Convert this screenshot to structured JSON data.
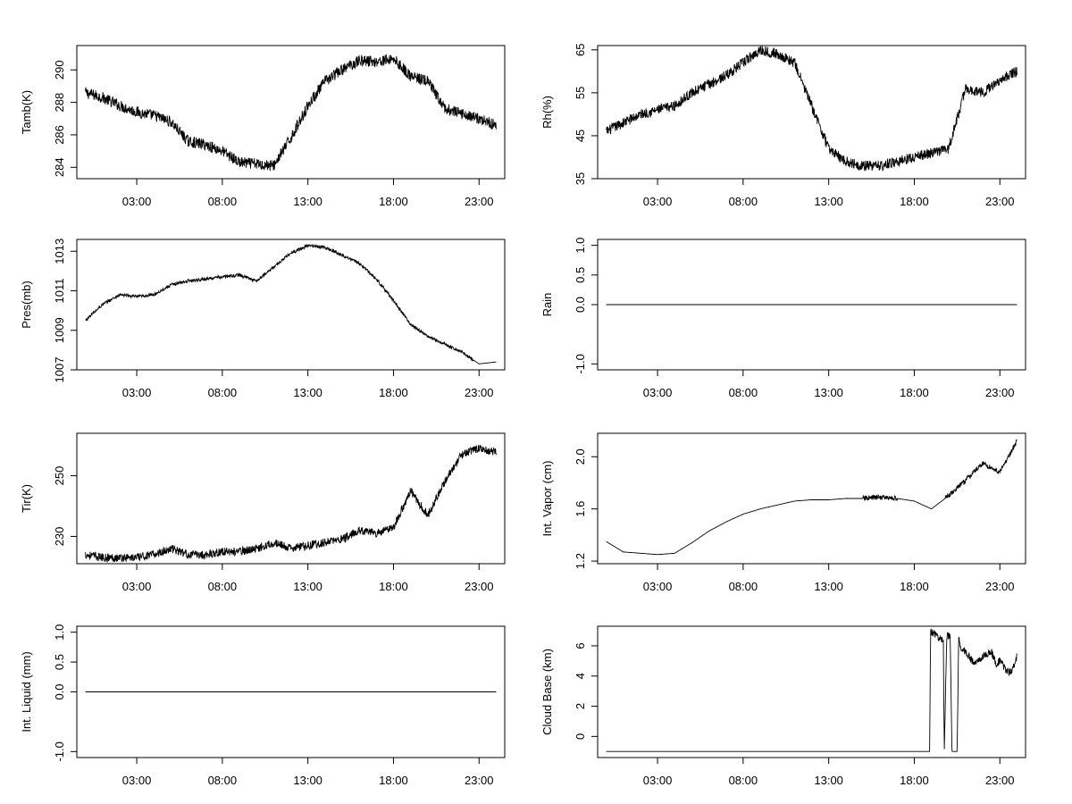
{
  "chart_data": [
    {
      "type": "line",
      "ylabel": "Tamb(K)",
      "x_ticks": [
        "03:00",
        "08:00",
        "13:00",
        "18:00",
        "23:00"
      ],
      "y_ticks": [
        "284",
        "286",
        "288",
        "290"
      ],
      "xlim": [
        -0.5,
        24.5
      ],
      "ylim": [
        283.3,
        291.5
      ],
      "x": [
        0,
        1,
        2,
        3,
        4,
        5,
        6,
        7,
        8,
        9,
        10,
        11,
        12,
        13,
        14,
        15,
        16,
        17,
        18,
        19,
        20,
        21,
        22,
        23,
        24
      ],
      "y": [
        288.6,
        288.3,
        287.8,
        287.4,
        287.2,
        286.8,
        285.6,
        285.4,
        285.0,
        284.3,
        284.2,
        284.1,
        285.8,
        287.8,
        289.3,
        290.0,
        290.6,
        290.5,
        290.7,
        289.6,
        289.3,
        287.6,
        287.3,
        287.0,
        286.6
      ],
      "noise": 0.35
    },
    {
      "type": "line",
      "ylabel": "Rh(%)",
      "x_ticks": [
        "03:00",
        "08:00",
        "13:00",
        "18:00",
        "23:00"
      ],
      "y_ticks": [
        "35",
        "45",
        "55",
        "65"
      ],
      "xlim": [
        -0.5,
        24.5
      ],
      "ylim": [
        35,
        66
      ],
      "x": [
        0,
        1,
        2,
        3,
        4,
        5,
        6,
        7,
        8,
        9,
        10,
        11,
        12,
        13,
        14,
        15,
        16,
        17,
        18,
        19,
        20,
        21,
        22,
        23,
        24
      ],
      "y": [
        46,
        48,
        50,
        51,
        52,
        55,
        57,
        59,
        62,
        65,
        64,
        62,
        52,
        42,
        39,
        38,
        38,
        39,
        40,
        41,
        42,
        56,
        55,
        58,
        60
      ],
      "noise": 1.2
    },
    {
      "type": "line",
      "ylabel": "Pres(mb)",
      "x_ticks": [
        "03:00",
        "08:00",
        "13:00",
        "18:00",
        "23:00"
      ],
      "y_ticks": [
        "1007",
        "1009",
        "1011",
        "1013"
      ],
      "xlim": [
        -0.5,
        24.5
      ],
      "ylim": [
        1007,
        1013.6
      ],
      "x": [
        0,
        1,
        2,
        3,
        4,
        5,
        6,
        7,
        8,
        9,
        10,
        11,
        12,
        13,
        14,
        15,
        16,
        17,
        18,
        19,
        20,
        21,
        22,
        23,
        24
      ],
      "y": [
        1009.5,
        1010.3,
        1010.8,
        1010.7,
        1010.8,
        1011.3,
        1011.5,
        1011.6,
        1011.7,
        1011.8,
        1011.5,
        1012.2,
        1012.9,
        1013.3,
        1013.2,
        1012.8,
        1012.4,
        1011.6,
        1010.5,
        1009.3,
        1008.7,
        1008.3,
        1007.9,
        1007.3,
        1007.4
      ],
      "noise": 0.08
    },
    {
      "type": "line",
      "ylabel": "Rain",
      "x_ticks": [
        "03:00",
        "08:00",
        "13:00",
        "18:00",
        "23:00"
      ],
      "y_ticks": [
        "-1.0",
        "0.0",
        "0.5",
        "1.0"
      ],
      "xlim": [
        -0.5,
        24.5
      ],
      "ylim": [
        -1.1,
        1.1
      ],
      "x": [
        0,
        24
      ],
      "y": [
        0,
        0
      ],
      "noise": 0
    },
    {
      "type": "line",
      "ylabel": "Tir(K)",
      "x_ticks": [
        "03:00",
        "08:00",
        "13:00",
        "18:00",
        "23:00"
      ],
      "y_ticks": [
        "230",
        "250"
      ],
      "xlim": [
        -0.5,
        24.5
      ],
      "ylim": [
        221,
        264
      ],
      "x": [
        0,
        1,
        2,
        3,
        4,
        5,
        6,
        7,
        8,
        9,
        10,
        11,
        12,
        13,
        14,
        15,
        16,
        17,
        18,
        19,
        20,
        21,
        22,
        23,
        24
      ],
      "y": [
        224,
        223,
        223,
        223,
        224,
        226,
        224,
        224,
        225,
        225,
        226,
        228,
        226,
        227,
        228,
        229,
        232,
        231,
        233,
        245,
        237,
        248,
        257,
        259,
        258
      ],
      "noise": 1.4
    },
    {
      "type": "line",
      "ylabel": "Int. Vapor (cm)",
      "x_ticks": [
        "03:00",
        "08:00",
        "13:00",
        "18:00",
        "23:00"
      ],
      "y_ticks": [
        "1.2",
        "1.6",
        "2.0"
      ],
      "xlim": [
        -0.5,
        24.5
      ],
      "ylim": [
        1.18,
        2.18
      ],
      "x": [
        0,
        1,
        2,
        3,
        4,
        5,
        6,
        7,
        8,
        9,
        10,
        11,
        12,
        13,
        14,
        15,
        16,
        17,
        18,
        19,
        20,
        21,
        22,
        23,
        24
      ],
      "y": [
        1.35,
        1.27,
        1.26,
        1.25,
        1.26,
        1.34,
        1.43,
        1.5,
        1.56,
        1.6,
        1.63,
        1.66,
        1.67,
        1.67,
        1.68,
        1.68,
        1.69,
        1.68,
        1.66,
        1.6,
        1.7,
        1.82,
        1.95,
        1.88,
        2.12
      ],
      "noise": 0.02
    },
    {
      "type": "line",
      "ylabel": "Int. Liquid (mm)",
      "x_ticks": [
        "03:00",
        "08:00",
        "13:00",
        "18:00",
        "23:00"
      ],
      "y_ticks": [
        "-1.0",
        "0.0",
        "0.5",
        "1.0"
      ],
      "xlim": [
        -0.5,
        24.5
      ],
      "ylim": [
        -1.1,
        1.1
      ],
      "x": [
        0,
        24
      ],
      "y": [
        0,
        0
      ],
      "noise": 0
    },
    {
      "type": "line",
      "ylabel": "Cloud Base (km)",
      "x_ticks": [
        "03:00",
        "08:00",
        "13:00",
        "18:00",
        "23:00"
      ],
      "y_ticks": [
        "0",
        "2",
        "4",
        "6"
      ],
      "xlim": [
        -0.5,
        24.5
      ],
      "ylim": [
        -1.4,
        7.3
      ],
      "x": [
        0,
        18.9,
        18.95,
        19.7,
        19.75,
        19.9,
        20.1,
        20.2,
        20.35,
        20.5,
        20.6,
        20.65,
        21.0,
        21.5,
        22.0,
        22.5,
        22.8,
        23.0,
        23.5,
        23.7,
        24.0
      ],
      "y": [
        -1,
        -1,
        7,
        6.3,
        -1,
        6.8,
        6.5,
        -1,
        -1,
        -1,
        6.8,
        6.0,
        5.6,
        4.8,
        5.3,
        5.6,
        4.8,
        5.0,
        4.2,
        4.4,
        5.3
      ],
      "noise": 0.25,
      "noise_from": 18.9
    }
  ]
}
